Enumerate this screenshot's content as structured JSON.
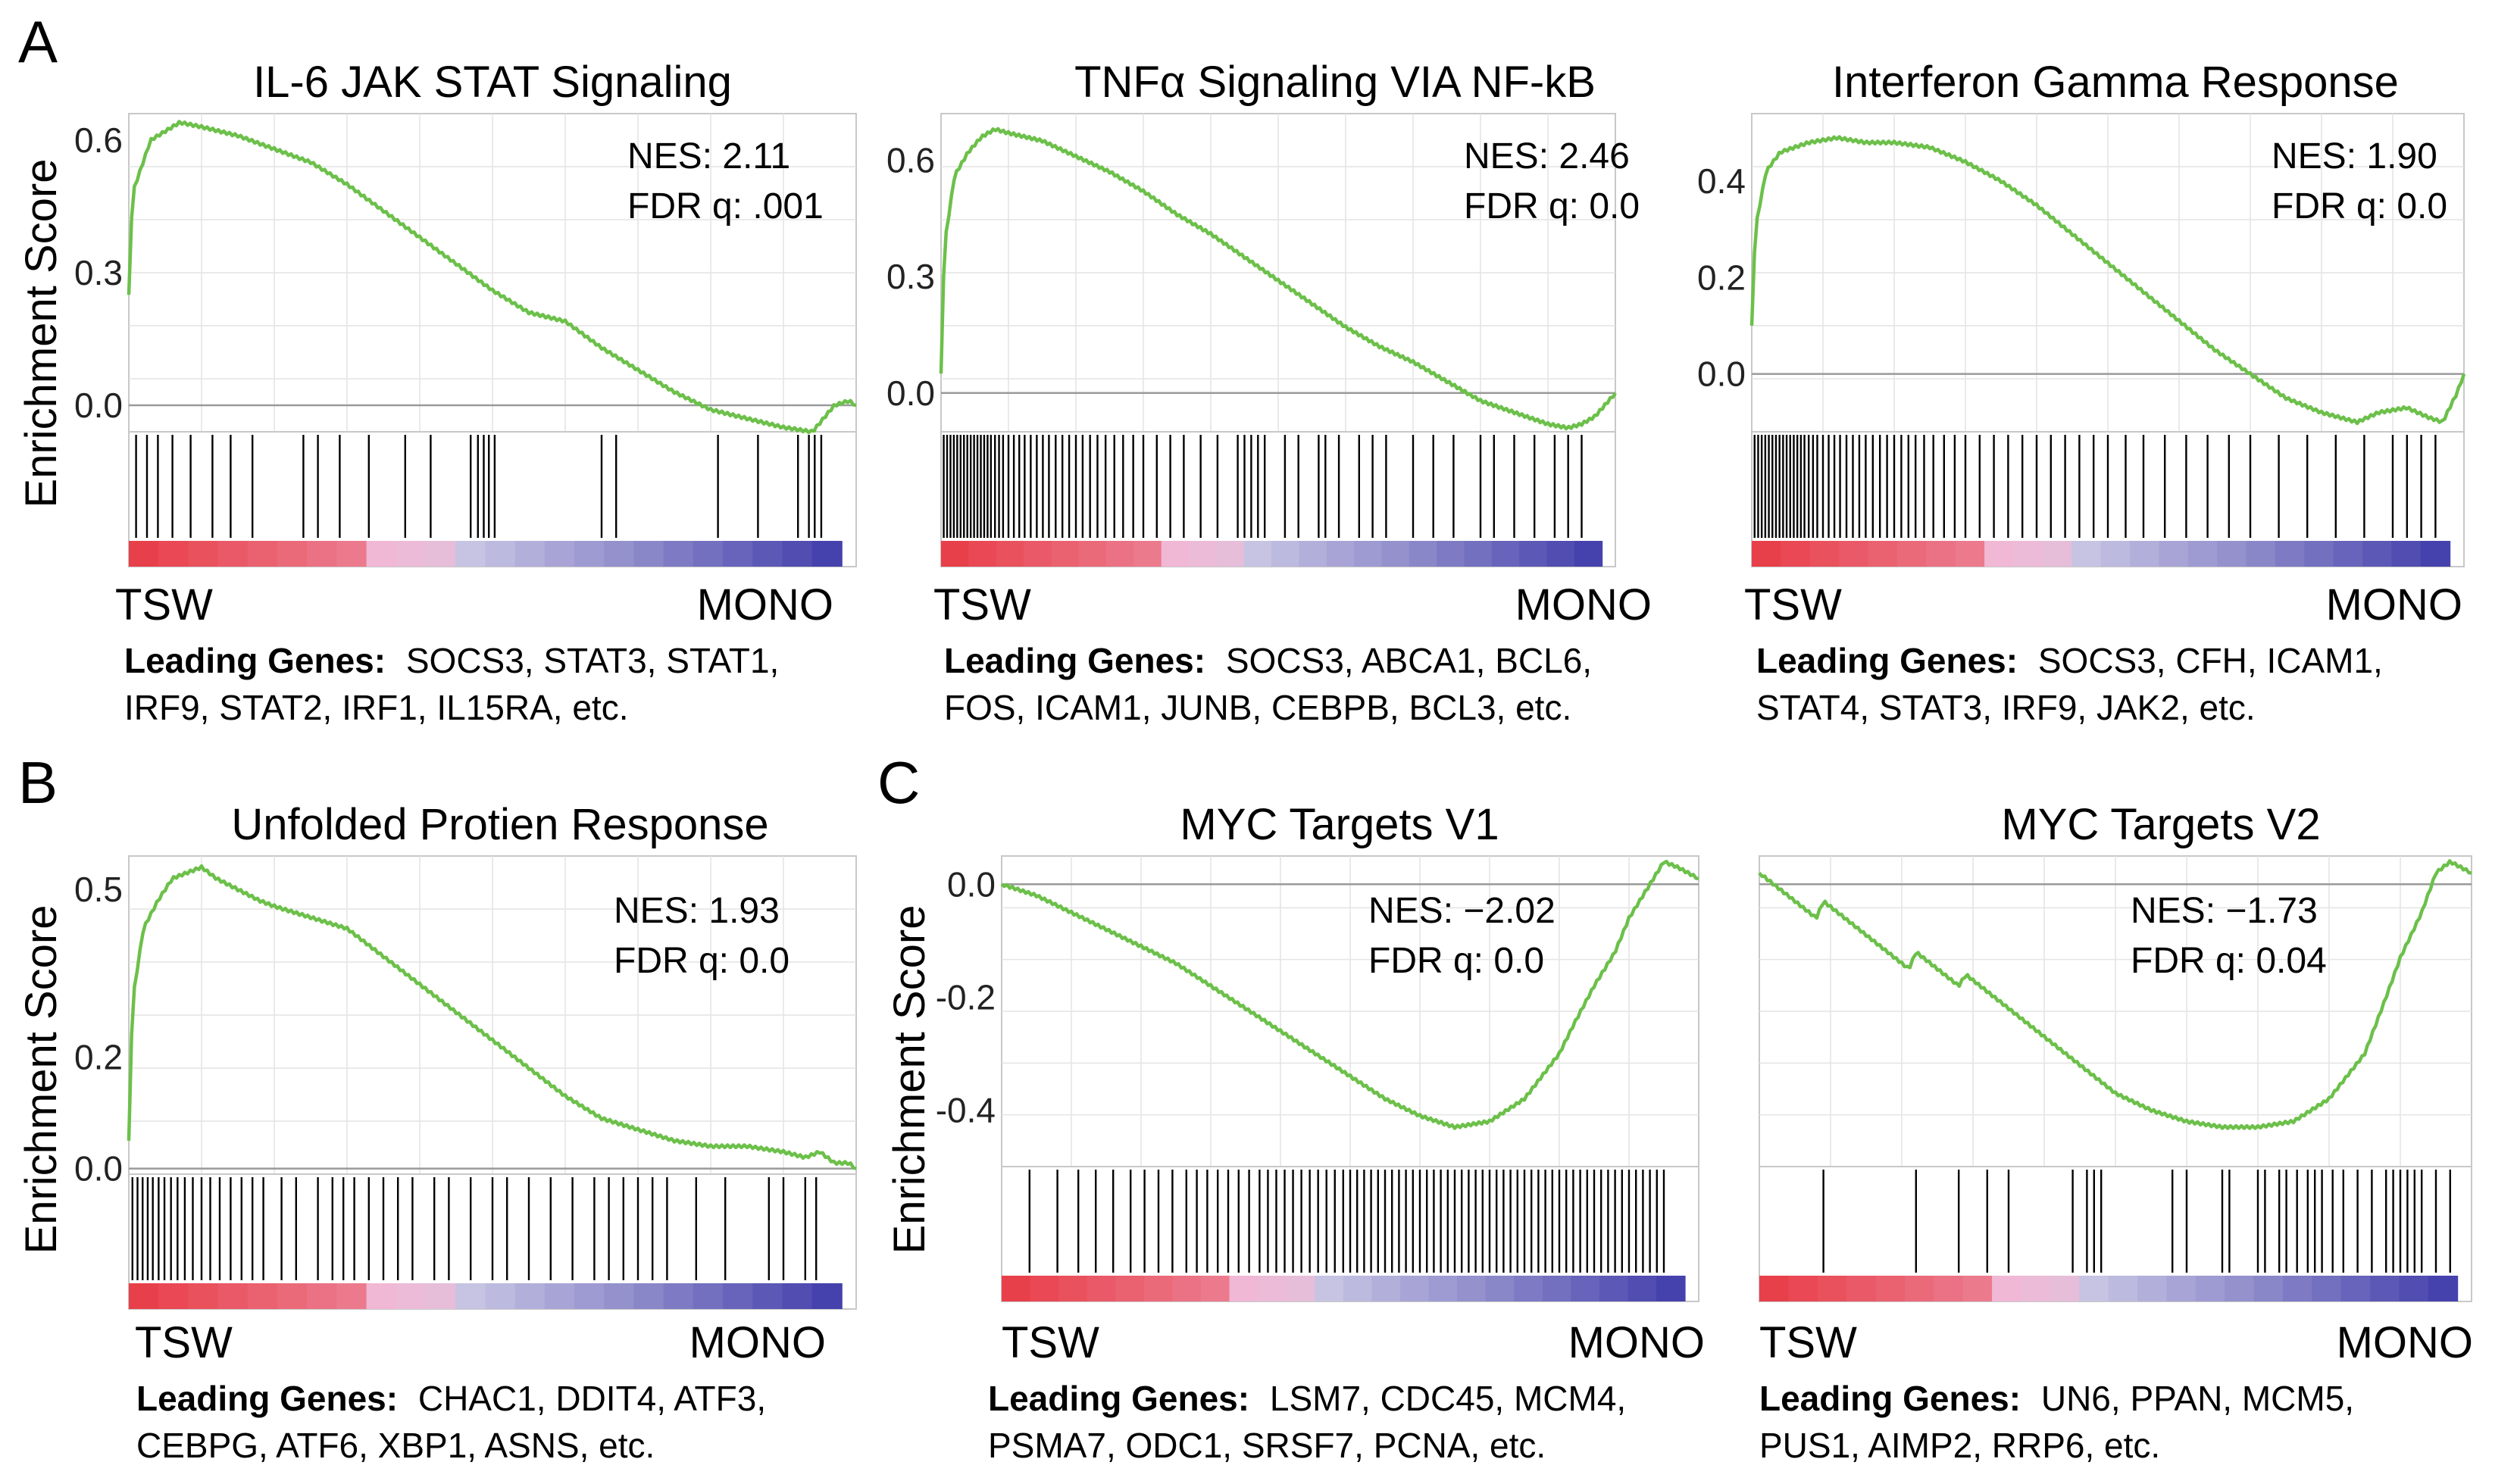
{
  "figure": {
    "panel_letters": [
      "A",
      "B",
      "C"
    ],
    "ylabel": "Enrichment Score",
    "left_label": "TSW",
    "right_label": "MONO",
    "leading_prefix": "Leading Genes:"
  },
  "colors": {
    "curve": "#6cc04a",
    "zero_line": "#9a9a9a",
    "hit": "#000000",
    "grid": "#e4e4e4",
    "frame": "#c8c8c8",
    "bar_red": "#e8404a",
    "bar_pink": "#f0b8d4",
    "bar_lavender": "#cfcde6",
    "bar_blue": "#3a36a8"
  },
  "chart_data": [
    {
      "type": "line",
      "title": "IL-6 JAK STAT Signaling",
      "nes": "NES: 2.11",
      "fdr": "FDR q: .001",
      "ylabel": "Enrichment Score",
      "ylim": [
        -0.06,
        0.66
      ],
      "yticks": [
        0.0,
        0.3,
        0.6
      ],
      "ytick_labels": [
        "0.0",
        "0.3",
        "0.6"
      ],
      "x": [
        0,
        0.5,
        3,
        5,
        7,
        10,
        15,
        20,
        25,
        30,
        35,
        40,
        45,
        50,
        55,
        60,
        65,
        70,
        75,
        80,
        85,
        90,
        94,
        96,
        97,
        99,
        100
      ],
      "y": [
        0.25,
        0.48,
        0.6,
        0.62,
        0.64,
        0.63,
        0.61,
        0.58,
        0.55,
        0.5,
        0.44,
        0.38,
        0.32,
        0.26,
        0.21,
        0.19,
        0.13,
        0.08,
        0.03,
        -0.01,
        -0.03,
        -0.05,
        -0.06,
        -0.02,
        0.0,
        0.01,
        0.0
      ],
      "hits": [
        1,
        2.5,
        4,
        6,
        8.5,
        11.5,
        14,
        17,
        24,
        26,
        29,
        33,
        38,
        41.5,
        47,
        48,
        48.8,
        49.5,
        50.3,
        65,
        67,
        81,
        86.5,
        92,
        93.5,
        94.3,
        95.2
      ],
      "leading_genes": [
        "SOCS3, STAT3, STAT1,",
        "IRF9, STAT2, IRF1, IL15RA, etc."
      ]
    },
    {
      "type": "line",
      "title": "TNFα Signaling VIA NF-kB",
      "nes": "NES: 2.46",
      "fdr": "FDR q: 0.0",
      "ylim": [
        -0.1,
        0.72
      ],
      "yticks": [
        0.0,
        0.3,
        0.6
      ],
      "ytick_labels": [
        "0.0",
        "0.3",
        "0.6"
      ],
      "x": [
        0,
        0.5,
        2,
        4,
        6,
        8,
        10,
        15,
        20,
        25,
        30,
        35,
        40,
        45,
        50,
        55,
        60,
        65,
        70,
        75,
        80,
        85,
        90,
        93,
        95,
        97,
        99,
        100
      ],
      "y": [
        0.05,
        0.38,
        0.56,
        0.62,
        0.66,
        0.68,
        0.67,
        0.65,
        0.61,
        0.57,
        0.52,
        0.46,
        0.41,
        0.35,
        0.29,
        0.23,
        0.17,
        0.12,
        0.08,
        0.03,
        -0.02,
        -0.05,
        -0.08,
        -0.09,
        -0.08,
        -0.06,
        -0.02,
        0.0
      ],
      "hits": [
        0.4,
        0.9,
        1.4,
        1.9,
        2.4,
        2.9,
        3.4,
        3.9,
        4.4,
        4.9,
        5.4,
        5.9,
        6.4,
        6.9,
        7.4,
        8,
        8.6,
        9.2,
        10,
        10.8,
        11.6,
        12.4,
        13.3,
        14.2,
        15.1,
        16,
        17,
        18,
        19,
        20,
        21,
        22.1,
        23.2,
        24.4,
        25.7,
        27,
        28.5,
        30,
        32,
        34,
        36,
        38.5,
        41,
        44,
        45,
        46,
        47,
        48,
        51,
        53,
        56,
        57,
        59,
        62,
        64,
        66,
        70,
        73,
        76,
        80,
        82,
        85,
        88,
        91,
        93,
        95
      ],
      "leading_genes": [
        "SOCS3, ABCA1, BCL6,",
        "FOS, ICAM1, JUNB, CEBPB, BCL3, etc."
      ]
    },
    {
      "type": "line",
      "title": "Interferon Gamma  Response",
      "nes": "NES: 1.90",
      "fdr": "FDR q: 0.0",
      "ylim": [
        -0.12,
        0.54
      ],
      "yticks": [
        0.0,
        0.2,
        0.4
      ],
      "ytick_labels": [
        "0.0",
        "0.2",
        "0.4"
      ],
      "x": [
        0,
        0.5,
        2,
        4,
        6,
        8,
        12,
        16,
        20,
        25,
        30,
        35,
        40,
        45,
        50,
        55,
        60,
        65,
        70,
        75,
        80,
        85,
        88,
        92,
        95,
        97,
        99,
        100
      ],
      "y": [
        0.1,
        0.3,
        0.42,
        0.46,
        0.47,
        0.48,
        0.49,
        0.48,
        0.48,
        0.47,
        0.44,
        0.4,
        0.35,
        0.29,
        0.23,
        0.17,
        0.11,
        0.05,
        0.0,
        -0.05,
        -0.08,
        -0.1,
        -0.08,
        -0.07,
        -0.09,
        -0.1,
        -0.04,
        0.0
      ],
      "hits": [
        0.4,
        0.9,
        1.4,
        1.9,
        2.4,
        2.9,
        3.4,
        3.9,
        4.4,
        4.9,
        5.4,
        5.9,
        6.4,
        6.9,
        7.4,
        8,
        8.6,
        9.2,
        10,
        10.8,
        11.6,
        12.4,
        13.3,
        14.2,
        15.1,
        16,
        17,
        18,
        19,
        20,
        21,
        22,
        23,
        24.2,
        25.5,
        27,
        28.5,
        30,
        32,
        34,
        36,
        38,
        40,
        42,
        44,
        46,
        48,
        50,
        52.5,
        55,
        58,
        61,
        64,
        67,
        70,
        74,
        78,
        82,
        86,
        90,
        92,
        94,
        96
      ],
      "leading_genes": [
        "SOCS3,  CFH, ICAM1,",
        "STAT4, STAT3, IRF9, JAK2, etc."
      ]
    },
    {
      "type": "line",
      "title": "Unfolded Protien Response",
      "nes": "NES: 1.93",
      "fdr": "FDR q: 0.0",
      "ylim": [
        -0.01,
        0.56
      ],
      "yticks": [
        0.0,
        0.2,
        0.5
      ],
      "ytick_labels": [
        "0.0",
        "0.2",
        "0.5"
      ],
      "x": [
        0,
        0.5,
        2,
        4,
        6,
        8,
        10,
        12,
        15,
        18,
        20,
        25,
        30,
        35,
        40,
        45,
        50,
        55,
        60,
        65,
        70,
        75,
        80,
        85,
        90,
        93,
        95,
        97,
        99,
        100
      ],
      "y": [
        0.05,
        0.3,
        0.43,
        0.48,
        0.52,
        0.53,
        0.54,
        0.52,
        0.5,
        0.48,
        0.47,
        0.45,
        0.43,
        0.38,
        0.33,
        0.28,
        0.23,
        0.18,
        0.13,
        0.09,
        0.07,
        0.05,
        0.04,
        0.04,
        0.03,
        0.02,
        0.03,
        0.01,
        0.01,
        0.0
      ],
      "hits": [
        0.5,
        1.2,
        1.9,
        2.6,
        3.3,
        4.1,
        4.9,
        5.8,
        6.7,
        7.7,
        8.8,
        10,
        11.2,
        12.5,
        14,
        15.5,
        17,
        18.5,
        21,
        23,
        26,
        28,
        29.5,
        31,
        33,
        35,
        37,
        39,
        42,
        44,
        47,
        50,
        52,
        55,
        58,
        61,
        64,
        66,
        68,
        70,
        72,
        74,
        78,
        82,
        88,
        90,
        93,
        94.5
      ],
      "leading_genes": [
        "CHAC1, DDIT4, ATF3,",
        "CEBPG, ATF6, XBP1, ASNS, etc."
      ]
    },
    {
      "type": "line",
      "title": "MYC Targets V1",
      "nes": "NES: −2.02",
      "fdr": "FDR q: 0.0",
      "ylim": [
        -0.5,
        0.05
      ],
      "yticks": [
        0.0,
        -0.2,
        -0.4
      ],
      "ytick_labels": [
        "0.0",
        "-0.2",
        "-0.4"
      ],
      "x": [
        0,
        5,
        10,
        15,
        20,
        25,
        30,
        35,
        40,
        45,
        50,
        55,
        60,
        65,
        70,
        75,
        80,
        82,
        85,
        88,
        90,
        93,
        95,
        97,
        100
      ],
      "y": [
        0.0,
        -0.02,
        -0.05,
        -0.08,
        -0.11,
        -0.14,
        -0.18,
        -0.22,
        -0.26,
        -0.3,
        -0.34,
        -0.38,
        -0.41,
        -0.43,
        -0.42,
        -0.38,
        -0.3,
        -0.25,
        -0.18,
        -0.12,
        -0.06,
        0.0,
        0.04,
        0.03,
        0.01
      ],
      "hits": [
        4,
        8,
        11,
        13.5,
        16,
        18.5,
        20.5,
        22.5,
        24.5,
        26.5,
        28,
        29.5,
        31,
        32.5,
        34,
        35.5,
        37,
        38.2,
        39.4,
        40.6,
        41.8,
        43,
        44.2,
        45.4,
        46.6,
        47.8,
        49,
        50,
        51,
        52,
        53,
        54,
        55,
        56,
        57,
        58,
        59,
        60,
        61,
        62,
        63,
        64,
        65,
        66,
        67,
        68,
        69,
        70,
        71,
        72,
        73,
        74,
        75,
        76,
        77,
        78,
        79,
        80,
        81,
        82,
        83,
        84,
        85,
        86,
        87,
        88,
        89,
        90,
        91,
        92,
        93,
        94,
        95
      ],
      "leading_genes": [
        "LSM7, CDC45, MCM4,",
        "PSMA7, ODC1, SRSF7, PCNA, etc."
      ]
    },
    {
      "type": "line",
      "title": "MYC Targets V2",
      "nes": "NES: −1.73",
      "fdr": "FDR q: 0.04",
      "ylim": [
        -0.5,
        0.05
      ],
      "yticks": [],
      "ytick_labels": [],
      "x": [
        0,
        5,
        8,
        9,
        15,
        21,
        22,
        28,
        29,
        35,
        40,
        45,
        50,
        55,
        60,
        65,
        70,
        75,
        80,
        85,
        88,
        90,
        93,
        95,
        97,
        100
      ],
      "y": [
        0.02,
        -0.03,
        -0.06,
        -0.03,
        -0.09,
        -0.15,
        -0.12,
        -0.18,
        -0.16,
        -0.22,
        -0.27,
        -0.32,
        -0.37,
        -0.4,
        -0.42,
        -0.43,
        -0.43,
        -0.42,
        -0.38,
        -0.3,
        -0.2,
        -0.13,
        -0.05,
        0.02,
        0.04,
        0.02
      ],
      "hits": [
        9,
        22,
        28,
        32,
        35,
        44,
        46,
        47,
        48,
        58,
        60,
        65,
        66,
        70,
        71,
        73,
        74,
        75.5,
        77,
        78,
        79,
        80.5,
        82,
        84,
        86,
        88,
        89,
        90,
        91,
        92,
        93,
        95,
        97
      ],
      "leading_genes": [
        "UN6, PPAN, MCM5,",
        "PUS1, AIMP2, RRP6, etc."
      ]
    }
  ]
}
